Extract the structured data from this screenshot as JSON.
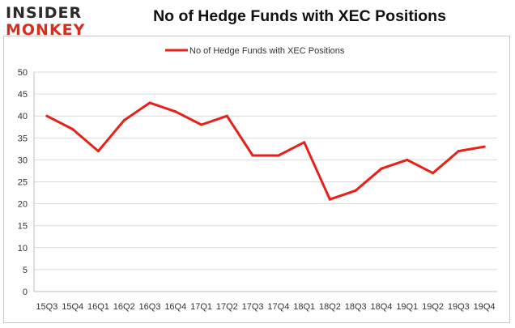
{
  "logo": {
    "line1": "INSIDER",
    "line2": "MONKEY"
  },
  "chart_data": {
    "type": "line",
    "title": "No of Hedge Funds with XEC Positions",
    "xlabel": "",
    "ylabel": "",
    "categories": [
      "15Q3",
      "15Q4",
      "16Q1",
      "16Q2",
      "16Q3",
      "16Q4",
      "17Q1",
      "17Q2",
      "17Q3",
      "17Q4",
      "18Q1",
      "18Q2",
      "18Q3",
      "18Q4",
      "19Q1",
      "19Q2",
      "19Q3",
      "19Q4"
    ],
    "series": [
      {
        "name": "No of Hedge Funds with XEC Positions",
        "values": [
          40,
          37,
          32,
          39,
          43,
          41,
          38,
          40,
          31,
          31,
          34,
          21,
          23,
          28,
          30,
          27,
          32,
          33
        ]
      }
    ],
    "ylim": [
      0,
      50
    ],
    "yticks": [
      0,
      5,
      10,
      15,
      20,
      25,
      30,
      35,
      40,
      45,
      50
    ],
    "grid": true,
    "legend": "top-center",
    "colors": {
      "line": "#e8201a",
      "grid": "#d9d9d9",
      "axis": "#bfbfbf"
    }
  }
}
